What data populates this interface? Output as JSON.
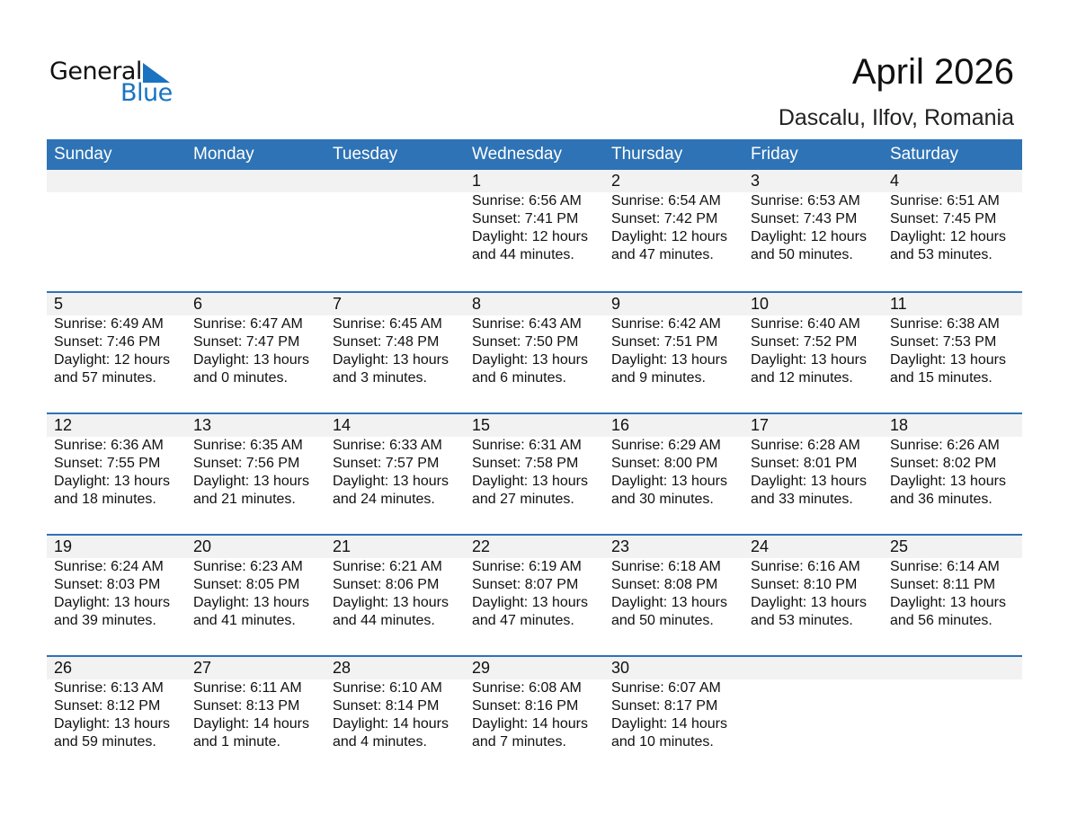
{
  "logo": {
    "word1": "General",
    "word2": "Blue",
    "accent": "#1a73c0"
  },
  "title": "April 2026",
  "subtitle": "Dascalu, Ilfov, Romania",
  "colors": {
    "header": "#2e73b5",
    "band": "#f2f2f2"
  },
  "weekdays": [
    "Sunday",
    "Monday",
    "Tuesday",
    "Wednesday",
    "Thursday",
    "Friday",
    "Saturday"
  ],
  "weeks": [
    [
      null,
      null,
      null,
      {
        "day": "1",
        "sunrise": "Sunrise: 6:56 AM",
        "sunset": "Sunset: 7:41 PM",
        "daylight1": "Daylight: 12 hours",
        "daylight2": "and 44 minutes."
      },
      {
        "day": "2",
        "sunrise": "Sunrise: 6:54 AM",
        "sunset": "Sunset: 7:42 PM",
        "daylight1": "Daylight: 12 hours",
        "daylight2": "and 47 minutes."
      },
      {
        "day": "3",
        "sunrise": "Sunrise: 6:53 AM",
        "sunset": "Sunset: 7:43 PM",
        "daylight1": "Daylight: 12 hours",
        "daylight2": "and 50 minutes."
      },
      {
        "day": "4",
        "sunrise": "Sunrise: 6:51 AM",
        "sunset": "Sunset: 7:45 PM",
        "daylight1": "Daylight: 12 hours",
        "daylight2": "and 53 minutes."
      }
    ],
    [
      {
        "day": "5",
        "sunrise": "Sunrise: 6:49 AM",
        "sunset": "Sunset: 7:46 PM",
        "daylight1": "Daylight: 12 hours",
        "daylight2": "and 57 minutes."
      },
      {
        "day": "6",
        "sunrise": "Sunrise: 6:47 AM",
        "sunset": "Sunset: 7:47 PM",
        "daylight1": "Daylight: 13 hours",
        "daylight2": "and 0 minutes."
      },
      {
        "day": "7",
        "sunrise": "Sunrise: 6:45 AM",
        "sunset": "Sunset: 7:48 PM",
        "daylight1": "Daylight: 13 hours",
        "daylight2": "and 3 minutes."
      },
      {
        "day": "8",
        "sunrise": "Sunrise: 6:43 AM",
        "sunset": "Sunset: 7:50 PM",
        "daylight1": "Daylight: 13 hours",
        "daylight2": "and 6 minutes."
      },
      {
        "day": "9",
        "sunrise": "Sunrise: 6:42 AM",
        "sunset": "Sunset: 7:51 PM",
        "daylight1": "Daylight: 13 hours",
        "daylight2": "and 9 minutes."
      },
      {
        "day": "10",
        "sunrise": "Sunrise: 6:40 AM",
        "sunset": "Sunset: 7:52 PM",
        "daylight1": "Daylight: 13 hours",
        "daylight2": "and 12 minutes."
      },
      {
        "day": "11",
        "sunrise": "Sunrise: 6:38 AM",
        "sunset": "Sunset: 7:53 PM",
        "daylight1": "Daylight: 13 hours",
        "daylight2": "and 15 minutes."
      }
    ],
    [
      {
        "day": "12",
        "sunrise": "Sunrise: 6:36 AM",
        "sunset": "Sunset: 7:55 PM",
        "daylight1": "Daylight: 13 hours",
        "daylight2": "and 18 minutes."
      },
      {
        "day": "13",
        "sunrise": "Sunrise: 6:35 AM",
        "sunset": "Sunset: 7:56 PM",
        "daylight1": "Daylight: 13 hours",
        "daylight2": "and 21 minutes."
      },
      {
        "day": "14",
        "sunrise": "Sunrise: 6:33 AM",
        "sunset": "Sunset: 7:57 PM",
        "daylight1": "Daylight: 13 hours",
        "daylight2": "and 24 minutes."
      },
      {
        "day": "15",
        "sunrise": "Sunrise: 6:31 AM",
        "sunset": "Sunset: 7:58 PM",
        "daylight1": "Daylight: 13 hours",
        "daylight2": "and 27 minutes."
      },
      {
        "day": "16",
        "sunrise": "Sunrise: 6:29 AM",
        "sunset": "Sunset: 8:00 PM",
        "daylight1": "Daylight: 13 hours",
        "daylight2": "and 30 minutes."
      },
      {
        "day": "17",
        "sunrise": "Sunrise: 6:28 AM",
        "sunset": "Sunset: 8:01 PM",
        "daylight1": "Daylight: 13 hours",
        "daylight2": "and 33 minutes."
      },
      {
        "day": "18",
        "sunrise": "Sunrise: 6:26 AM",
        "sunset": "Sunset: 8:02 PM",
        "daylight1": "Daylight: 13 hours",
        "daylight2": "and 36 minutes."
      }
    ],
    [
      {
        "day": "19",
        "sunrise": "Sunrise: 6:24 AM",
        "sunset": "Sunset: 8:03 PM",
        "daylight1": "Daylight: 13 hours",
        "daylight2": "and 39 minutes."
      },
      {
        "day": "20",
        "sunrise": "Sunrise: 6:23 AM",
        "sunset": "Sunset: 8:05 PM",
        "daylight1": "Daylight: 13 hours",
        "daylight2": "and 41 minutes."
      },
      {
        "day": "21",
        "sunrise": "Sunrise: 6:21 AM",
        "sunset": "Sunset: 8:06 PM",
        "daylight1": "Daylight: 13 hours",
        "daylight2": "and 44 minutes."
      },
      {
        "day": "22",
        "sunrise": "Sunrise: 6:19 AM",
        "sunset": "Sunset: 8:07 PM",
        "daylight1": "Daylight: 13 hours",
        "daylight2": "and 47 minutes."
      },
      {
        "day": "23",
        "sunrise": "Sunrise: 6:18 AM",
        "sunset": "Sunset: 8:08 PM",
        "daylight1": "Daylight: 13 hours",
        "daylight2": "and 50 minutes."
      },
      {
        "day": "24",
        "sunrise": "Sunrise: 6:16 AM",
        "sunset": "Sunset: 8:10 PM",
        "daylight1": "Daylight: 13 hours",
        "daylight2": "and 53 minutes."
      },
      {
        "day": "25",
        "sunrise": "Sunrise: 6:14 AM",
        "sunset": "Sunset: 8:11 PM",
        "daylight1": "Daylight: 13 hours",
        "daylight2": "and 56 minutes."
      }
    ],
    [
      {
        "day": "26",
        "sunrise": "Sunrise: 6:13 AM",
        "sunset": "Sunset: 8:12 PM",
        "daylight1": "Daylight: 13 hours",
        "daylight2": "and 59 minutes."
      },
      {
        "day": "27",
        "sunrise": "Sunrise: 6:11 AM",
        "sunset": "Sunset: 8:13 PM",
        "daylight1": "Daylight: 14 hours",
        "daylight2": "and 1 minute."
      },
      {
        "day": "28",
        "sunrise": "Sunrise: 6:10 AM",
        "sunset": "Sunset: 8:14 PM",
        "daylight1": "Daylight: 14 hours",
        "daylight2": "and 4 minutes."
      },
      {
        "day": "29",
        "sunrise": "Sunrise: 6:08 AM",
        "sunset": "Sunset: 8:16 PM",
        "daylight1": "Daylight: 14 hours",
        "daylight2": "and 7 minutes."
      },
      {
        "day": "30",
        "sunrise": "Sunrise: 6:07 AM",
        "sunset": "Sunset: 8:17 PM",
        "daylight1": "Daylight: 14 hours",
        "daylight2": "and 10 minutes."
      },
      null,
      null
    ]
  ]
}
